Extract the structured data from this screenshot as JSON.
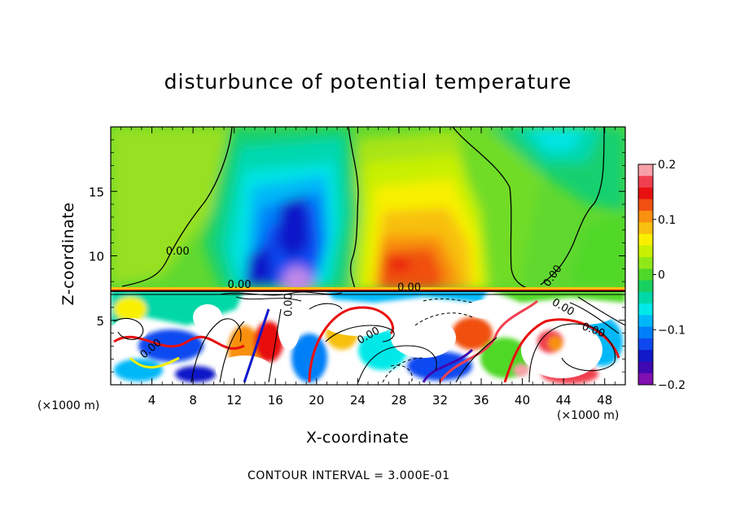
{
  "chart_data": {
    "type": "heatmap",
    "title": "disturbunce of potential temperature",
    "xlabel": "X-coordinate",
    "ylabel": "Z-coordinate",
    "x_unit_label": "(×1000 m)",
    "footnote": "CONTOUR INTERVAL = 3.000E-01",
    "xlim": [
      0,
      50
    ],
    "ylim": [
      0,
      20
    ],
    "x_ticks": [
      4,
      8,
      12,
      16,
      20,
      24,
      28,
      32,
      36,
      40,
      44,
      48
    ],
    "y_ticks": [
      5,
      10,
      15
    ],
    "colorbar": {
      "range": [
        -0.2,
        0.2
      ],
      "ticks": [
        "0.2",
        "0.1",
        "0",
        "−0.1",
        "−0.2"
      ],
      "tick_values": [
        0.2,
        0.1,
        0,
        -0.1,
        -0.2
      ],
      "colors": [
        "#f8a0a8",
        "#f04050",
        "#e81010",
        "#f05010",
        "#f89010",
        "#f8c010",
        "#f8f000",
        "#c8f000",
        "#90e818",
        "#50d828",
        "#18d060",
        "#00d8a8",
        "#00e8e8",
        "#00b8f8",
        "#0080f8",
        "#1048f0",
        "#1018c8",
        "#4008b0",
        "#8010b0"
      ]
    },
    "contour_labels": [
      "0.00",
      "0.00",
      "0.00",
      "0.00",
      "0.00",
      "0.00",
      "0.00",
      "0.00",
      "0.00"
    ],
    "grid": false,
    "legend": "colorbar right"
  }
}
